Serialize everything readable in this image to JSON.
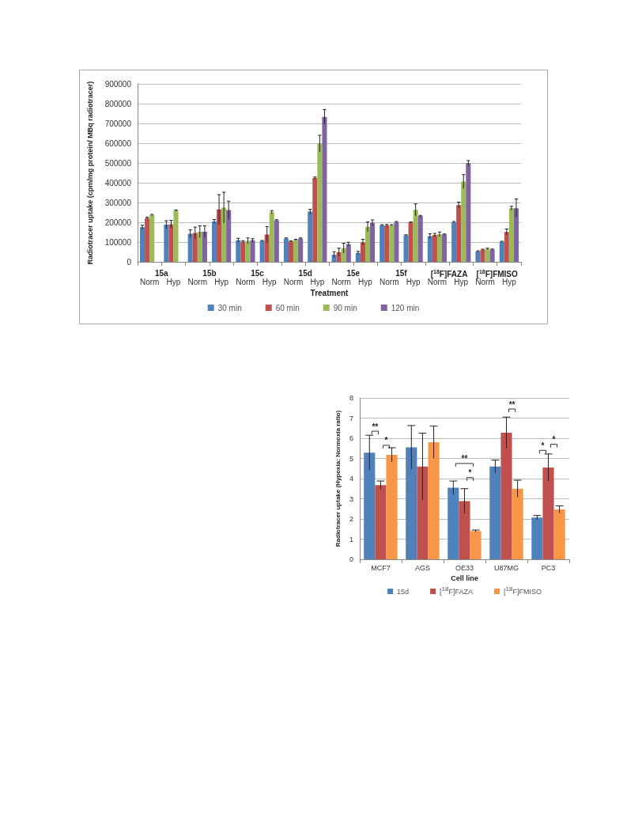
{
  "chart_data": [
    {
      "type": "bar",
      "xlabel": "Treatment",
      "ylabel": "Radiotracer uptake (cpm/mg protein/ MBq radiotracer)",
      "categories": [
        "Norm",
        "Hyp",
        "Norm",
        "Hyp",
        "Norm",
        "Hyp",
        "Norm",
        "Hyp",
        "Norm",
        "Hyp",
        "Norm",
        "Hyp",
        "Norm",
        "Hyp",
        "Norm",
        "Hyp"
      ],
      "series": [
        {
          "name": "30 min",
          "color": "#4f81bd",
          "values": [
            175000,
            188000,
            142000,
            204000,
            109000,
            106000,
            118000,
            254000,
            36000,
            45000,
            185000,
            134000,
            130000,
            201000,
            53000,
            101000
          ],
          "errors": [
            10000,
            20000,
            20000,
            10000,
            10000,
            2000,
            3000,
            12000,
            15000,
            8000,
            3000,
            3000,
            12000,
            3000,
            3000,
            3000
          ]
        },
        {
          "name": "60 min",
          "color": "#c0504d",
          "values": [
            221000,
            190000,
            146000,
            265000,
            102000,
            138000,
            103000,
            424000,
            49000,
            99000,
            184000,
            199000,
            136000,
            287000,
            61000,
            151000
          ],
          "errors": [
            5000,
            20000,
            30000,
            75000,
            5000,
            40000,
            3000,
            5000,
            20000,
            15000,
            5000,
            3000,
            8000,
            15000,
            3000,
            15000
          ]
        },
        {
          "name": "90 min",
          "color": "#9bbb59",
          "values": [
            237000,
            259000,
            152000,
            274000,
            106000,
            251000,
            111000,
            598000,
            69000,
            177000,
            185000,
            263000,
            139000,
            406000,
            66000,
            271000
          ],
          "errors": [
            3000,
            3000,
            30000,
            78000,
            15000,
            8000,
            3000,
            42000,
            25000,
            25000,
            3000,
            30000,
            12000,
            35000,
            3000,
            10000
          ]
        },
        {
          "name": "120 min",
          "color": "#8064a2",
          "values": [
            null,
            null,
            152000,
            262000,
            109000,
            210000,
            118000,
            733000,
            89000,
            197000,
            201000,
            232000,
            139000,
            499000,
            62000,
            271000
          ],
          "errors": [
            null,
            null,
            30000,
            45000,
            8000,
            3000,
            3000,
            37000,
            10000,
            15000,
            3000,
            3000,
            2000,
            13000,
            3000,
            47000
          ]
        }
      ],
      "annotations": [
        "15a",
        "15b",
        "15c",
        "15d",
        "15e",
        "15f",
        "[$^{18}$F]FAZA",
        "[$^{18}$F]FMISO"
      ],
      "ylim": [
        0,
        900000
      ],
      "yticks": [
        0,
        100000,
        200000,
        300000,
        400000,
        500000,
        600000,
        700000,
        800000,
        900000
      ],
      "grid": "y",
      "legend": "bottom"
    },
    {
      "type": "bar",
      "xlabel": "Cell line",
      "ylabel": "Radiotracer uptake (Hypoxia: Normoxia ratio)",
      "categories": [
        "MCF7",
        "AGS",
        "OE33",
        "U87MG",
        "PC3"
      ],
      "series": [
        {
          "name": "15d",
          "color": "#4f81bd",
          "values": [
            5.28,
            5.55,
            3.55,
            4.6,
            2.07
          ],
          "errors": [
            0.87,
            1.08,
            0.33,
            0.32,
            0.1
          ]
        },
        {
          "name": "[$^{18}$F]FAZA",
          "color": "#c0504d",
          "values": [
            3.68,
            4.6,
            2.88,
            6.27,
            4.55
          ],
          "errors": [
            0.2,
            1.65,
            0.62,
            0.78,
            0.67
          ]
        },
        {
          "name": "[$^{18}$F]FMISO",
          "color": "#f79646",
          "values": [
            5.18,
            5.8,
            1.4,
            3.5,
            2.47
          ],
          "errors": [
            0.35,
            0.8,
            0.05,
            0.42,
            0.18
          ]
        }
      ],
      "annotations": [
        "**",
        "*",
        "**",
        "*",
        "**",
        "*",
        "*"
      ],
      "ylim": [
        0,
        8
      ],
      "yticks": [
        0,
        1,
        2,
        3,
        4,
        5,
        6,
        7,
        8
      ],
      "grid": "y",
      "legend": "bottom"
    }
  ]
}
